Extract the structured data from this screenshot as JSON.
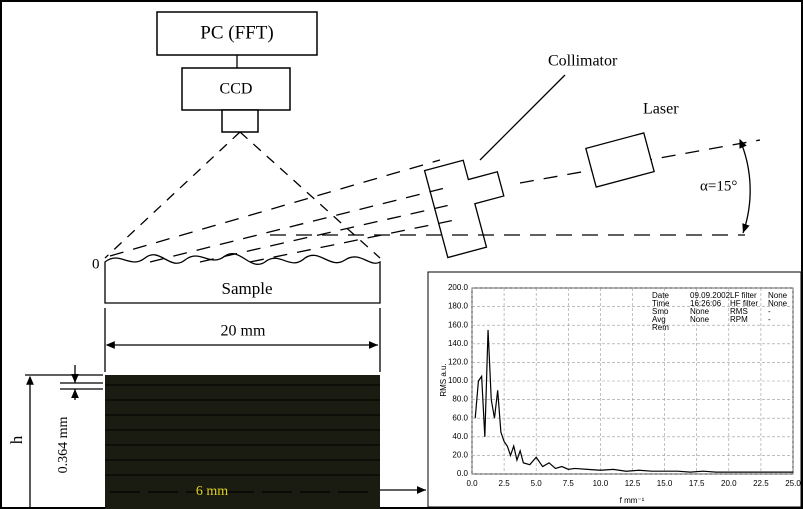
{
  "diagram": {
    "pc_label": "PC (FFT)",
    "ccd_label": "CCD",
    "collimator_label": "Collimator",
    "laser_label": "Laser",
    "angle_label": "α=15°",
    "origin_label": "0",
    "sample_label": "Sample",
    "width_label": "20 mm",
    "h_label": "h",
    "step_label": "0.364 mm",
    "scan_label": "6 mm"
  },
  "chart_data": {
    "type": "line",
    "ylabel": "RMS a.u.",
    "xlabel": "f mm⁻¹",
    "color": "#000000",
    "grid": true,
    "x": [
      0.25,
      0.5,
      0.75,
      1.0,
      1.25,
      1.5,
      1.75,
      2.0,
      2.25,
      2.5,
      2.75,
      3.0,
      3.25,
      3.5,
      3.75,
      4.0,
      4.5,
      5.0,
      5.5,
      6.0,
      6.5,
      7.0,
      7.5,
      8.0,
      9,
      10,
      11,
      12,
      13,
      14,
      15,
      16,
      17,
      18,
      19,
      20,
      21,
      22,
      23,
      24,
      25
    ],
    "values": [
      60,
      100,
      105,
      40,
      155,
      80,
      60,
      90,
      45,
      35,
      30,
      20,
      30,
      15,
      25,
      12,
      10,
      18,
      8,
      12,
      6,
      8,
      5,
      6,
      5,
      4,
      5,
      3,
      4,
      3,
      3,
      3,
      2,
      3,
      2,
      2,
      2,
      2,
      2,
      2,
      2
    ],
    "xlim": [
      0,
      25
    ],
    "ylim": [
      0,
      200
    ],
    "xticks": [
      {
        "value": 0,
        "label": "0.0"
      },
      2.5,
      {
        "value": 5,
        "label": "5.0"
      },
      7.5,
      {
        "value": 10,
        "label": "10.0"
      },
      12.5,
      {
        "value": 15,
        "label": "15.0"
      },
      17.5,
      {
        "value": 20,
        "label": "20.0"
      },
      22.5,
      {
        "value": 25,
        "label": "25.0"
      }
    ],
    "yticks": [
      {
        "value": 0,
        "label": "0.0"
      },
      {
        "value": 20,
        "label": "20.0"
      },
      {
        "value": 40,
        "label": "40.0"
      },
      {
        "value": 60,
        "label": "60.0"
      },
      {
        "value": 80,
        "label": "80.0"
      },
      {
        "value": 100,
        "label": "100.0"
      },
      {
        "value": 120,
        "label": "120.0"
      },
      {
        "value": 140,
        "label": "140.0"
      },
      {
        "value": 160,
        "label": "160.0"
      },
      {
        "value": 180,
        "label": "180.0"
      },
      {
        "value": 200,
        "label": "200.0"
      }
    ],
    "info": [
      [
        "Date",
        "09.09.2002",
        "LF filter",
        "None"
      ],
      [
        "Time",
        "16:26:06",
        "HF filter",
        "None"
      ],
      [
        "Smo",
        "None",
        "RMS",
        "-"
      ],
      [
        "Avg",
        "None",
        "RPM",
        "-"
      ],
      [
        "Rem",
        "",
        "",
        ""
      ]
    ]
  }
}
